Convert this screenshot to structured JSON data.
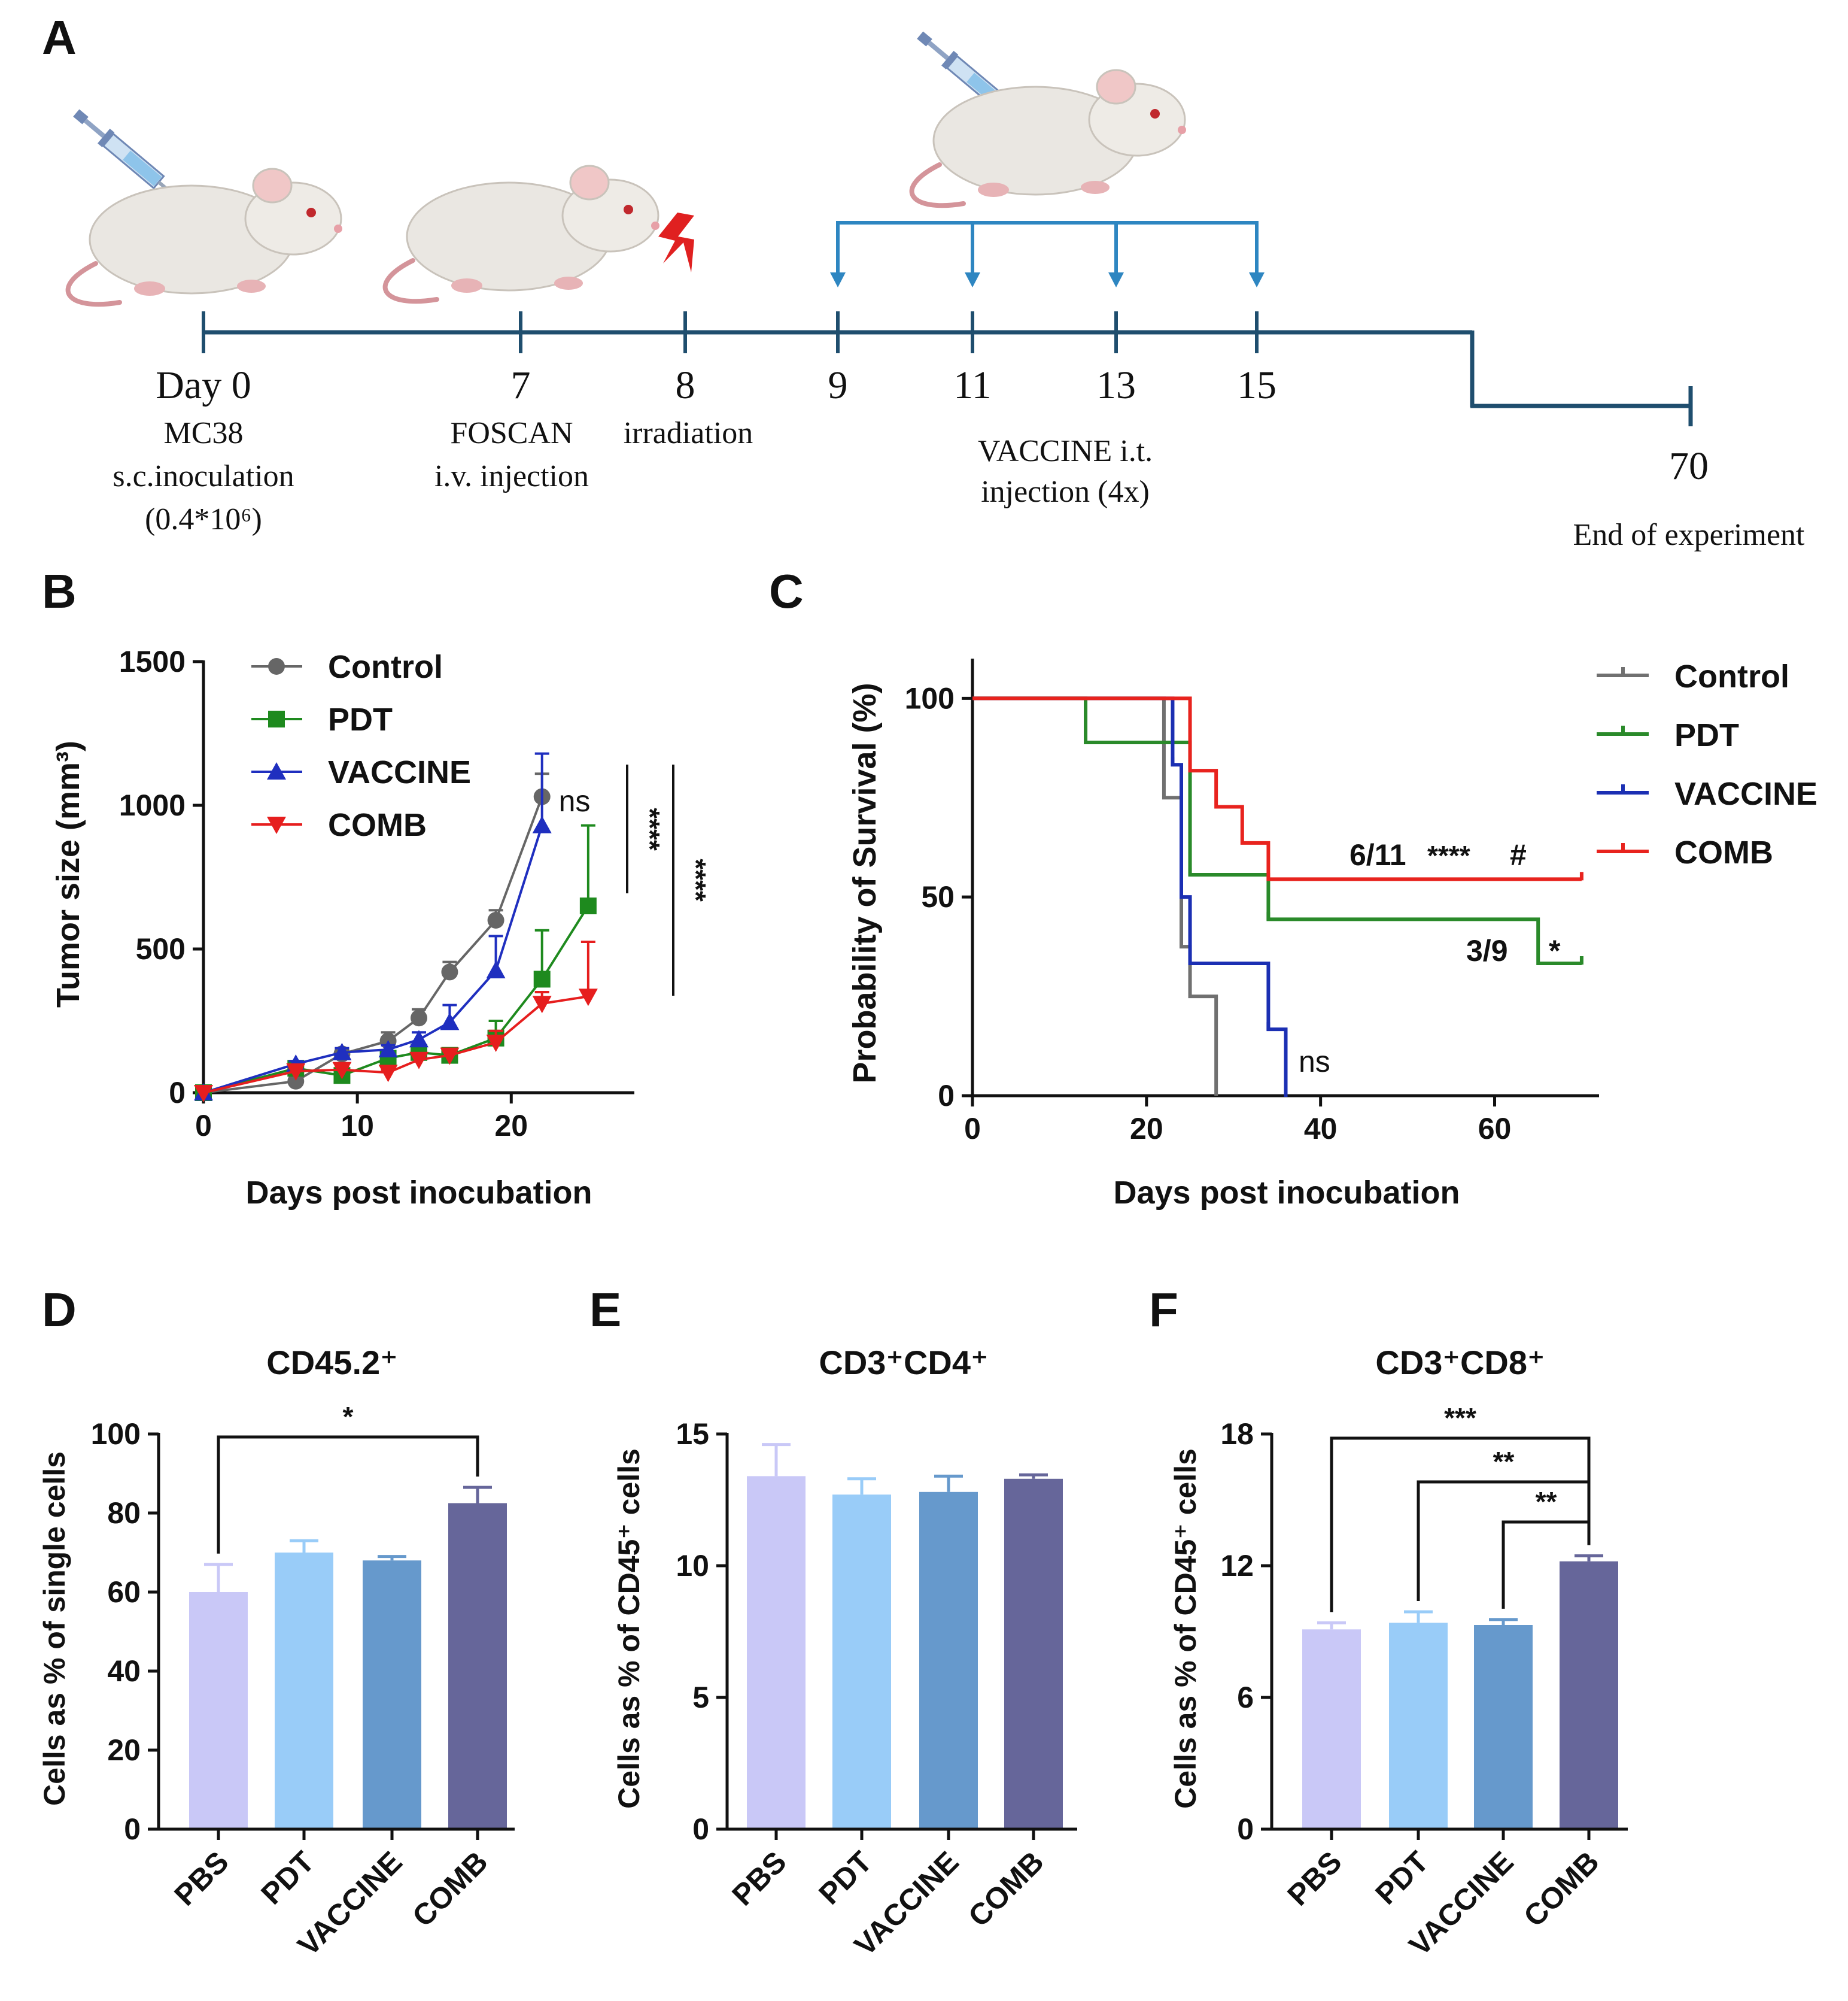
{
  "panel_letters": [
    "A",
    "B",
    "C",
    "D",
    "E",
    "F"
  ],
  "colors": {
    "timeline": "#1f4e6e",
    "vaccine_bracket": "#2e86c1",
    "lightning": "#e02020",
    "control": "#666666",
    "pdt": "#1e8a1e",
    "vaccine": "#1f2fbf",
    "comb": "#e61e1e",
    "control_c": "#707070",
    "pdt_c": "#2a8a2a",
    "vaccine_c": "#1b2fb3",
    "comb_c": "#e8231e",
    "bar_pbs": "#c9c8f7",
    "bar_pdt": "#99ccf8",
    "bar_vaccine": "#6699cc",
    "bar_comb": "#66669a"
  },
  "timeline": {
    "ticks": [
      {
        "day": "Day 0",
        "label": [
          "MC38",
          "s.c.inoculation",
          "(0.4*10⁶)"
        ]
      },
      {
        "day": "7",
        "label": [
          "FOSCAN",
          "i.v. injection"
        ]
      },
      {
        "day": "8",
        "label": [
          "irradiation"
        ]
      },
      {
        "day": "9",
        "label": []
      },
      {
        "day": "11",
        "label": []
      },
      {
        "day": "13",
        "label": []
      },
      {
        "day": "15",
        "label": []
      }
    ],
    "vaccine_label": [
      "VACCINE i.t.",
      "injection  (4x)"
    ],
    "end_day": "70",
    "end_label": "End of experiment",
    "icons": [
      "syringe-icon",
      "mouse-icon",
      "mouse-icon",
      "lightning-icon",
      "syringe-icon",
      "mouse-icon"
    ]
  },
  "chart_data": [
    {
      "panel": "B",
      "type": "line",
      "xlabel": "Days post inocubation",
      "ylabel": "Tumor size (mm³)",
      "xlim": [
        0,
        28
      ],
      "ylim": [
        0,
        1500
      ],
      "xticks": [
        0,
        10,
        20
      ],
      "yticks": [
        0,
        500,
        1000,
        1500
      ],
      "legend": [
        "Control",
        "PDT",
        "VACCINE",
        "COMB"
      ],
      "series": [
        {
          "name": "Control",
          "marker": "circle",
          "x": [
            0,
            6,
            9,
            12,
            14,
            16,
            19,
            22
          ],
          "y": [
            0,
            40,
            135,
            180,
            260,
            420,
            600,
            1030
          ],
          "err": [
            0,
            10,
            15,
            30,
            30,
            35,
            35,
            80
          ]
        },
        {
          "name": "PDT",
          "marker": "square",
          "x": [
            0,
            6,
            9,
            12,
            14,
            16,
            19,
            22,
            25
          ],
          "y": [
            0,
            85,
            60,
            120,
            140,
            130,
            190,
            395,
            650
          ],
          "err": [
            0,
            10,
            10,
            15,
            20,
            20,
            60,
            170,
            280
          ]
        },
        {
          "name": "VACCINE",
          "marker": "triangle-up",
          "x": [
            0,
            6,
            9,
            12,
            14,
            16,
            19,
            22
          ],
          "y": [
            0,
            100,
            140,
            150,
            185,
            245,
            425,
            930
          ],
          "err": [
            0,
            10,
            15,
            15,
            25,
            60,
            120,
            250
          ]
        },
        {
          "name": "COMB",
          "marker": "triangle-down",
          "x": [
            0,
            6,
            9,
            12,
            14,
            16,
            19,
            22,
            25
          ],
          "y": [
            0,
            75,
            80,
            70,
            115,
            130,
            175,
            310,
            335
          ],
          "err": [
            0,
            10,
            10,
            10,
            20,
            20,
            40,
            40,
            190
          ]
        }
      ],
      "annotations": {
        "ns": "ns",
        "sig1": "****",
        "sig2": "****"
      }
    },
    {
      "panel": "C",
      "type": "line",
      "style": "step",
      "xlabel": "Days post inocubation",
      "ylabel": "Probability of Survival (%)",
      "xlim": [
        0,
        72
      ],
      "ylim": [
        0,
        110
      ],
      "xticks": [
        0,
        20,
        40,
        60
      ],
      "yticks": [
        0,
        50,
        100
      ],
      "legend": [
        "Control",
        "PDT",
        "VACCINE",
        "COMB"
      ],
      "series": [
        {
          "name": "Control",
          "x": [
            0,
            22,
            22,
            24,
            24,
            25,
            25,
            28,
            28
          ],
          "y": [
            100,
            100,
            75,
            75,
            37.5,
            37.5,
            25,
            25,
            0
          ]
        },
        {
          "name": "PDT",
          "x": [
            0,
            13,
            13,
            25,
            25,
            34,
            34,
            65,
            65,
            70
          ],
          "y": [
            100,
            100,
            88.9,
            88.9,
            55.6,
            55.6,
            44.4,
            44.4,
            33.3,
            33.3
          ]
        },
        {
          "name": "VACCINE",
          "x": [
            0,
            23,
            23,
            24,
            24,
            25,
            25,
            34,
            34,
            36,
            36
          ],
          "y": [
            100,
            100,
            83.3,
            83.3,
            50,
            50,
            33.3,
            33.3,
            16.7,
            16.7,
            0
          ]
        },
        {
          "name": "COMB",
          "x": [
            0,
            25,
            25,
            28,
            28,
            31,
            31,
            34,
            34,
            70
          ],
          "y": [
            100,
            100,
            81.8,
            81.8,
            72.7,
            72.7,
            63.6,
            63.6,
            54.5,
            54.5
          ]
        }
      ],
      "censored": [
        {
          "name": "Control",
          "x": []
        },
        {
          "name": "PDT",
          "x": [
            25,
            34,
            70
          ]
        },
        {
          "name": "VACCINE",
          "x": [
            23,
            24,
            34,
            36
          ]
        },
        {
          "name": "COMB",
          "x": [
            70
          ]
        }
      ],
      "annotations": {
        "comb": "6/11",
        "comb_sig": "****",
        "comb_hash": "#",
        "pdt": "3/9",
        "pdt_sig": "*",
        "vaccine": "ns"
      }
    },
    {
      "panel": "D",
      "type": "bar",
      "title": "CD45.2⁺",
      "ylabel": "Cells as % of single cells",
      "categories": [
        "PBS",
        "PDT",
        "VACCINE",
        "COMB"
      ],
      "values": [
        60,
        70,
        68,
        82.5
      ],
      "err": [
        7,
        3,
        1,
        4
      ],
      "ylim": [
        0,
        100
      ],
      "yticks": [
        0,
        20,
        40,
        60,
        80,
        100
      ],
      "brackets": [
        {
          "from": 0,
          "to": 3,
          "label": "*"
        }
      ]
    },
    {
      "panel": "E",
      "type": "bar",
      "title": "CD3⁺CD4⁺",
      "ylabel": "Cells as % of CD45⁺ cells",
      "categories": [
        "PBS",
        "PDT",
        "VACCINE",
        "COMB"
      ],
      "values": [
        13.4,
        12.7,
        12.8,
        13.3
      ],
      "err": [
        1.2,
        0.6,
        0.6,
        0.15
      ],
      "ylim": [
        0,
        15
      ],
      "yticks": [
        0,
        5,
        10,
        15
      ],
      "brackets": []
    },
    {
      "panel": "F",
      "type": "bar",
      "title": "CD3⁺CD8⁺",
      "ylabel": "Cells as % of CD45⁺ cells",
      "categories": [
        "PBS",
        "PDT",
        "VACCINE",
        "COMB"
      ],
      "values": [
        9.1,
        9.4,
        9.3,
        12.2
      ],
      "err": [
        0.3,
        0.5,
        0.25,
        0.25
      ],
      "ylim": [
        0,
        18
      ],
      "yticks": [
        0,
        6,
        12,
        18
      ],
      "brackets": [
        {
          "from": 0,
          "to": 3,
          "label": "***"
        },
        {
          "from": 1,
          "to": 3,
          "label": "**"
        },
        {
          "from": 2,
          "to": 3,
          "label": "**"
        }
      ]
    }
  ]
}
